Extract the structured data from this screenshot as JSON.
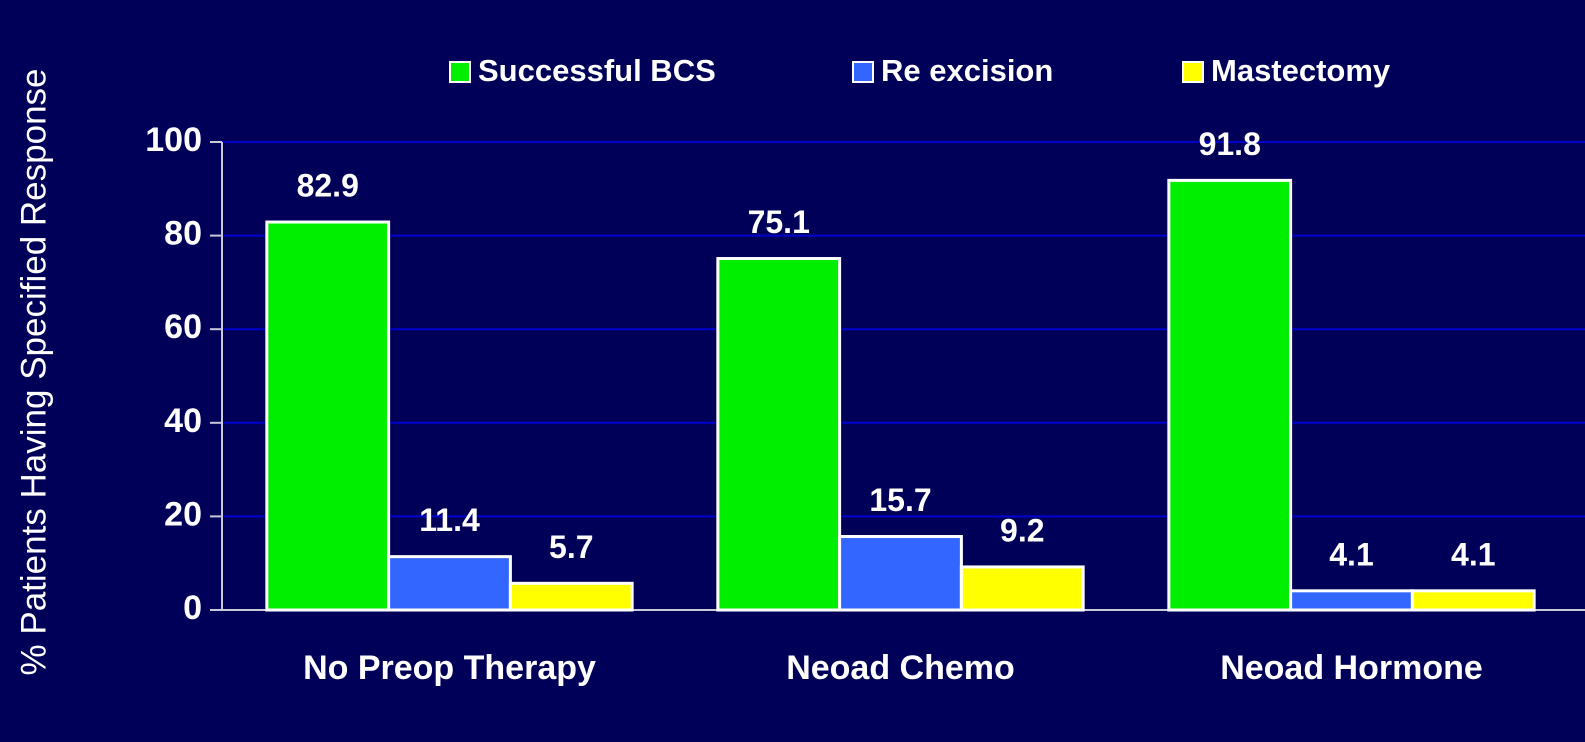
{
  "chart_data": {
    "type": "bar",
    "ylabel": "% Patients Having Specified Response",
    "categories": [
      "No Preop Therapy",
      "Neoad Chemo",
      "Neoad Hormone"
    ],
    "series": [
      {
        "name": "Successful BCS",
        "color": "#00ee00",
        "values": [
          82.9,
          75.1,
          91.8
        ]
      },
      {
        "name": "Re excision",
        "color": "#3366ff",
        "values": [
          11.4,
          15.7,
          4.1
        ]
      },
      {
        "name": "Mastectomy",
        "color": "#ffff00",
        "values": [
          5.7,
          9.2,
          4.1
        ]
      }
    ],
    "ylim": [
      0,
      100
    ],
    "yticks": [
      0,
      20,
      40,
      60,
      80,
      100
    ],
    "grid": true,
    "legend": "top"
  }
}
